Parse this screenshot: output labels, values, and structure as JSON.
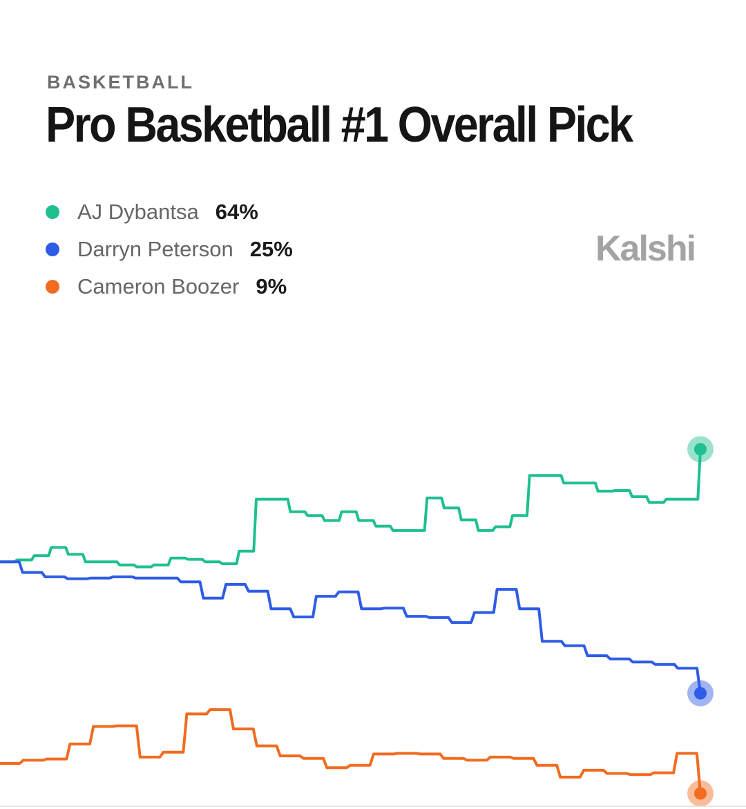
{
  "header": {
    "category": "BASKETBALL",
    "title": "Pro Basketball #1 Overall Pick",
    "brand": "Kalshi"
  },
  "chart_data": {
    "type": "line",
    "ylim": [
      0,
      100
    ],
    "grid": false,
    "legend_placement": "top-left",
    "series": [
      {
        "name": "AJ Dybantsa",
        "label": "64%",
        "color": "#1fbf8f",
        "values": [
          46,
          46.3,
          47,
          48.3,
          47.2,
          46,
          46,
          45.5,
          45.2,
          45.5,
          46.6,
          46.4,
          46,
          45.7,
          47.7,
          56,
          56,
          54,
          53.4,
          52.6,
          54,
          52.6,
          51.7,
          51,
          51,
          56.2,
          54.6,
          52.7,
          51,
          51.6,
          53.4,
          59.8,
          59.8,
          58.6,
          58.6,
          57.3,
          57.4,
          56.4,
          55.5,
          56,
          56,
          64
        ]
      },
      {
        "name": "Darryn Peterson",
        "label": "25%",
        "color": "#2e5ce6",
        "values": [
          46,
          44.3,
          43.6,
          43.3,
          43.4,
          43.6,
          43.4,
          43.4,
          42.8,
          40.2,
          42.4,
          41.3,
          38.5,
          37.2,
          40.5,
          41.2,
          38.5,
          38.6,
          37.3,
          37.1,
          36.3,
          37.9,
          41.6,
          38.5,
          33.3,
          32.6,
          31,
          30.5,
          30,
          29.6,
          29,
          25
        ]
      },
      {
        "name": "Cameron Boozer",
        "label": "9%",
        "color": "#f26b1f",
        "values": [
          13.8,
          14.3,
          14.5,
          16.9,
          19.7,
          19.8,
          14.8,
          15.6,
          21.7,
          22.4,
          19.3,
          16.6,
          15,
          14.6,
          13.1,
          13.5,
          15.3,
          15.4,
          15.3,
          14.6,
          14.3,
          14.8,
          14.6,
          13.5,
          11.6,
          12.7,
          12.2,
          12,
          12.3,
          15.4,
          9
        ]
      }
    ]
  }
}
